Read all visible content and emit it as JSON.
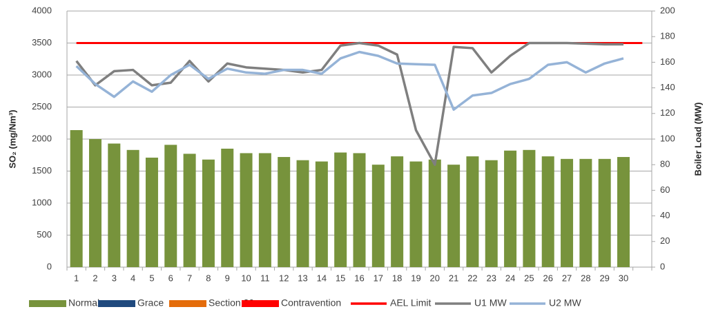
{
  "chart_data": {
    "type": "bar",
    "y_label": "SO₂ (mg/Nm³)",
    "y2_label": "Boiler Load (MW)",
    "categories": [
      "1",
      "2",
      "3",
      "4",
      "5",
      "6",
      "7",
      "8",
      "9",
      "10",
      "11",
      "12",
      "13",
      "14",
      "15",
      "16",
      "17",
      "18",
      "19",
      "20",
      "21",
      "22",
      "23",
      "24",
      "25",
      "26",
      "27",
      "28",
      "29",
      "30",
      null
    ],
    "ylim": [
      0,
      4000
    ],
    "yticks": [
      0,
      500,
      1000,
      1500,
      2000,
      2500,
      3000,
      3500,
      4000
    ],
    "y2lim": [
      0,
      200
    ],
    "y2ticks": [
      0,
      20,
      40,
      60,
      80,
      100,
      120,
      140,
      160,
      180,
      200
    ],
    "grid": true,
    "legend": "bottom",
    "series": [
      {
        "name": "Normal",
        "type": "bar",
        "color": "#77933c",
        "values": [
          2140,
          2000,
          1930,
          1830,
          1710,
          1910,
          1770,
          1680,
          1850,
          1780,
          1780,
          1720,
          1670,
          1650,
          1790,
          1780,
          1600,
          1730,
          1650,
          1680,
          1600,
          1730,
          1670,
          1820,
          1830,
          1730,
          1690,
          1690,
          1690,
          1720,
          null
        ]
      },
      {
        "name": "Grace",
        "type": "bar",
        "color": "#1f497d",
        "values": [
          null,
          null,
          null,
          null,
          null,
          null,
          null,
          null,
          null,
          null,
          null,
          null,
          null,
          null,
          null,
          null,
          null,
          null,
          null,
          null,
          null,
          null,
          null,
          null,
          null,
          null,
          null,
          null,
          null,
          null,
          null
        ]
      },
      {
        "name": "Section 30",
        "type": "bar",
        "color": "#e46c0a",
        "values": [
          null,
          null,
          null,
          null,
          null,
          null,
          null,
          null,
          null,
          null,
          null,
          null,
          null,
          null,
          null,
          null,
          null,
          null,
          null,
          null,
          null,
          null,
          null,
          null,
          null,
          null,
          null,
          null,
          null,
          null,
          null
        ]
      },
      {
        "name": "Contravention",
        "type": "bar",
        "color": "#ff0000",
        "values": [
          null,
          null,
          null,
          null,
          null,
          null,
          null,
          null,
          null,
          null,
          null,
          null,
          null,
          null,
          null,
          null,
          null,
          null,
          null,
          null,
          null,
          null,
          null,
          null,
          null,
          null,
          null,
          null,
          null,
          null,
          null
        ]
      },
      {
        "name": "AEL Limit",
        "type": "line",
        "color": "#ff0000",
        "values": [
          3500,
          3500,
          3500,
          3500,
          3500,
          3500,
          3500,
          3500,
          3500,
          3500,
          3500,
          3500,
          3500,
          3500,
          3500,
          3500,
          3500,
          3500,
          3500,
          3500,
          3500,
          3500,
          3500,
          3500,
          3500,
          3500,
          3500,
          3500,
          3500,
          3500,
          3500
        ]
      },
      {
        "name": "U1 MW",
        "type": "line",
        "axis": "y2",
        "color": "#7f7f7f",
        "values": [
          161,
          142,
          153,
          154,
          142,
          144,
          161,
          145,
          159,
          156,
          155,
          154,
          152,
          154,
          173,
          175,
          173,
          166,
          107,
          80,
          172,
          171,
          152,
          165,
          175,
          175,
          175,
          174.5,
          174,
          174,
          null
        ]
      },
      {
        "name": "U2 MW",
        "type": "line",
        "axis": "y2",
        "color": "#95b3d7",
        "values": [
          157,
          143,
          133,
          145,
          137,
          150,
          158,
          147,
          155,
          152,
          151,
          154,
          154,
          151,
          163,
          168,
          165,
          159,
          158.5,
          158,
          123,
          134,
          136,
          143,
          147,
          158,
          160,
          152,
          159,
          163,
          null
        ]
      }
    ]
  }
}
